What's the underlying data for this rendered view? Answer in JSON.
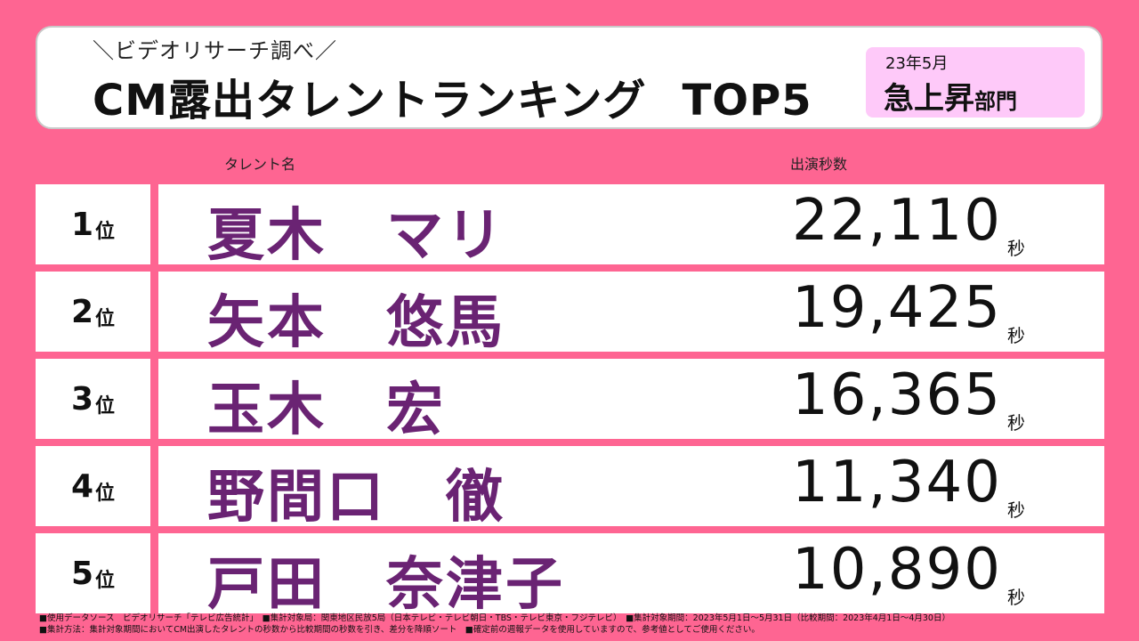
{
  "header": {
    "subtitle": "＼ビデオリサーチ調べ／",
    "title_main": "CM露出タレントランキング",
    "title_top": "TOP5",
    "badge_date": "23年5月",
    "badge_main": "急上昇",
    "badge_suffix": "部門"
  },
  "columns": {
    "name": "タレント名",
    "seconds": "出演秒数"
  },
  "rows": [
    {
      "rank": "1",
      "rank_suffix": "位",
      "name": "夏木　マリ",
      "seconds": "22,110",
      "unit": "秒"
    },
    {
      "rank": "2",
      "rank_suffix": "位",
      "name": "矢本　悠馬",
      "seconds": "19,425",
      "unit": "秒"
    },
    {
      "rank": "3",
      "rank_suffix": "位",
      "name": "玉木　宏",
      "seconds": "16,365",
      "unit": "秒"
    },
    {
      "rank": "4",
      "rank_suffix": "位",
      "name": "野間口　徹",
      "seconds": "11,340",
      "unit": "秒"
    },
    {
      "rank": "5",
      "rank_suffix": "位",
      "name": "戸田　奈津子",
      "seconds": "10,890",
      "unit": "秒"
    }
  ],
  "footer": {
    "line1": "■使用データソース　ビデオリサーチ「テレビ広告統計」　■集計対象局：関東地区民放5局（日本テレビ・テレビ朝日・TBS・テレビ東京・フジテレビ）　■集計対象期間：2023年5月1日～5月31日（比較期間：2023年4月1日～4月30日）",
    "line2": "■集計方法：集計対象期間においてCM出演したタレントの秒数から比較期間の秒数を引き、差分を降順ソート　■確定前の週報データを使用していますので、参考値としてご使用ください。"
  },
  "colors": {
    "background": "#fe6592",
    "name_text": "#6a2373",
    "badge_bg": "#fec9f9"
  }
}
